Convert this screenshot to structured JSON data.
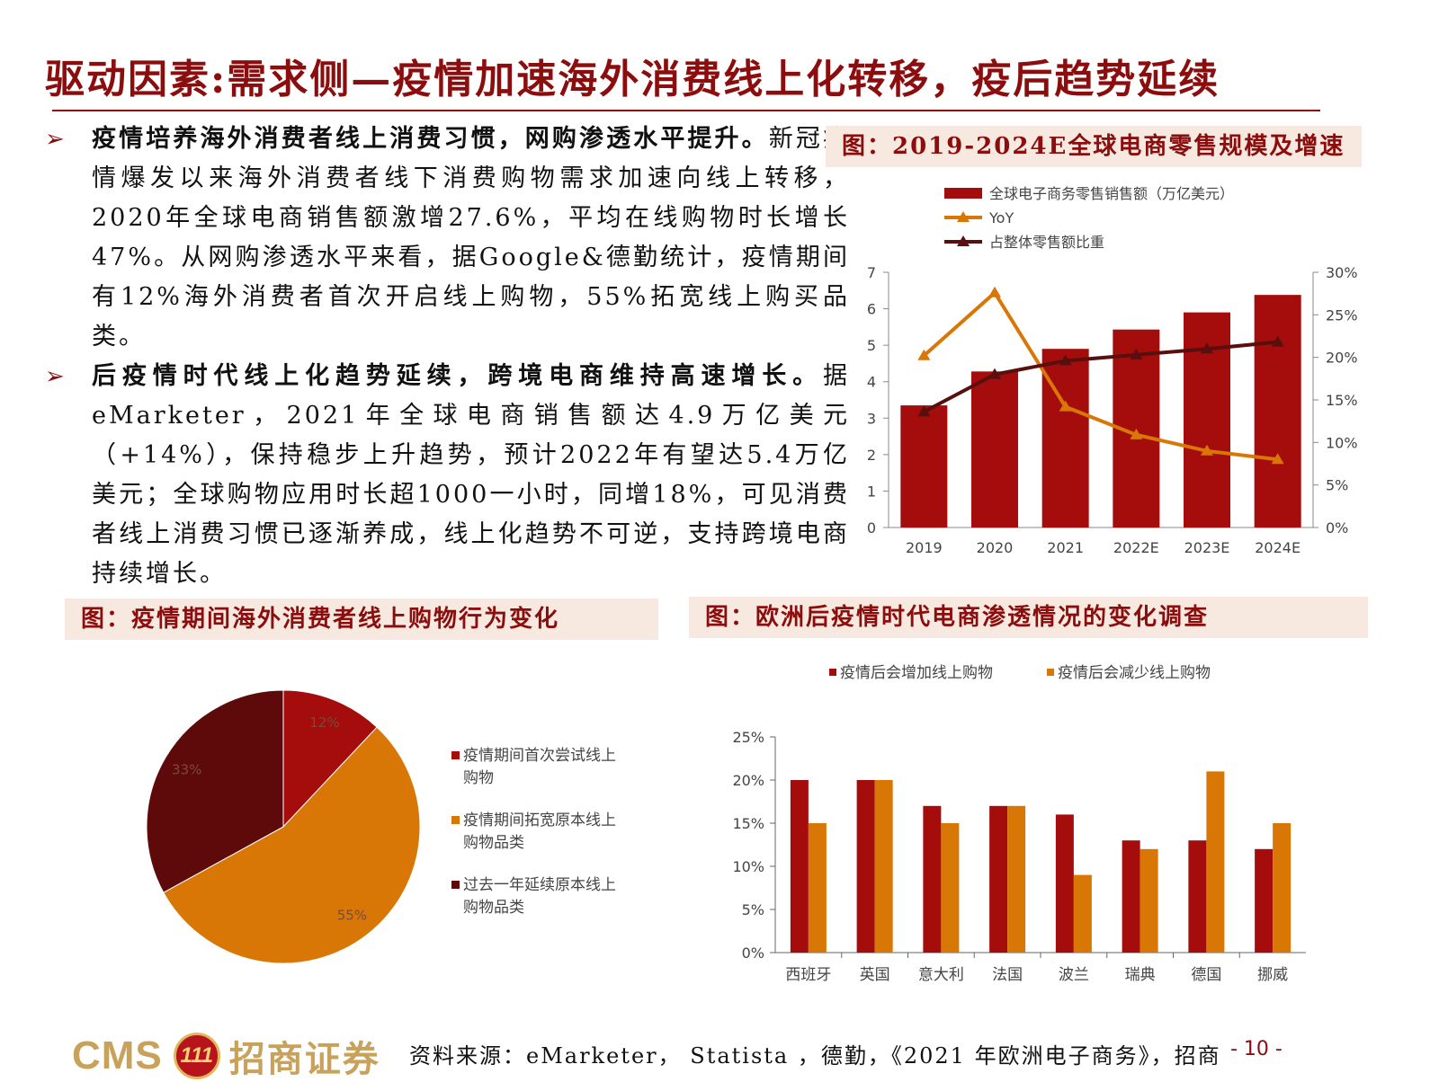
{
  "header": {
    "title": "驱动因素:需求侧—疫情加速海外消费线上化转移，疫后趋势延续"
  },
  "bullets": [
    {
      "lead": "疫情培养海外消费者线上消费习惯，网购渗透水平提升。",
      "body": "新冠疫情爆发以来海外消费者线下消费购物需求加速向线上转移，2020年全球电商销售额激增27.6%，平均在线购物时长增长47%。从网购渗透水平来看，据Google&德勤统计，疫情期间有12%海外消费者首次开启线上购物，55%拓宽线上购买品类。"
    },
    {
      "lead": "后疫情时代线上化趋势延续，跨境电商维持高速增长。",
      "body": "据eMarketer，2021年全球电商销售额达4.9万亿美元（+14%），保持稳步上升趋势，预计2022年有望达5.4万亿美元；全球购物应用时长超1000一小时，同增18%，可见消费者线上消费习惯已逐渐养成，线上化趋势不可逆，支持跨境电商持续增长。"
    }
  ],
  "captions": {
    "chart1": "图：2019-2024E全球电商零售规模及增速",
    "chart2": "图：疫情期间海外消费者线上购物行为变化",
    "chart3": "图：欧洲后疫情时代电商渗透情况的变化调查"
  },
  "chart_data": [
    {
      "type": "bar",
      "categories": [
        "2019",
        "2020",
        "2021",
        "2022E",
        "2023E",
        "2024E"
      ],
      "series": [
        {
          "name": "全球电子商务零售销售额（万亿美元）",
          "kind": "bar",
          "axis": "left",
          "values": [
            3.35,
            4.28,
            4.9,
            5.43,
            5.9,
            6.38
          ]
        },
        {
          "name": "YoY",
          "kind": "line",
          "axis": "right",
          "values": [
            20.2,
            27.6,
            14.2,
            10.9,
            9.0,
            8.0
          ]
        },
        {
          "name": "占整体零售额比重",
          "kind": "line",
          "axis": "right",
          "values": [
            13.6,
            18.0,
            19.6,
            20.3,
            21.0,
            21.8
          ]
        }
      ],
      "ylim_left": [
        0,
        7
      ],
      "yticks_left": [
        "0",
        "1",
        "2",
        "3",
        "4",
        "5",
        "6",
        "7"
      ],
      "ylim_right": [
        0,
        30
      ],
      "yticks_right": [
        "0%",
        "5%",
        "10%",
        "15%",
        "20%",
        "25%",
        "30%"
      ],
      "legend": "top-left",
      "colors": {
        "bar": "#a50c0c",
        "yoy": "#d97706",
        "share": "#5a0f0f"
      }
    },
    {
      "type": "pie",
      "slices": [
        {
          "label": "疫情期间首次尝试线上购物",
          "legend": [
            "疫情期间首次尝试线上",
            "购物"
          ],
          "value": 12,
          "text": "12%"
        },
        {
          "label": "疫情期间拓宽原本线上购物品类",
          "legend": [
            "疫情期间拓宽原本线上",
            "购物品类"
          ],
          "value": 55,
          "text": "55%"
        },
        {
          "label": "过去一年延续原本线上购物品类",
          "legend": [
            "过去一年延续原本线上",
            "购物品类"
          ],
          "value": 33,
          "text": "33%"
        }
      ],
      "legend": "right",
      "colors": [
        "#a50c0c",
        "#d97706",
        "#5e0a0a"
      ]
    },
    {
      "type": "bar",
      "categories": [
        "西班牙",
        "英国",
        "意大利",
        "法国",
        "波兰",
        "瑞典",
        "德国",
        "挪威"
      ],
      "series": [
        {
          "name": "疫情后会增加线上购物",
          "values": [
            20,
            20,
            17,
            17,
            16,
            13,
            13,
            12
          ]
        },
        {
          "name": "疫情后会减少线上购物",
          "values": [
            15,
            20,
            15,
            17,
            9,
            12,
            21,
            15
          ]
        }
      ],
      "ylim": [
        0,
        25
      ],
      "yticks": [
        "0%",
        "5%",
        "10%",
        "15%",
        "20%",
        "25%"
      ],
      "legend": "top",
      "colors": [
        "#a50c0c",
        "#d97706"
      ]
    }
  ],
  "footer": {
    "logo_text": "CMS",
    "logo_badge": "111",
    "logo_cn": "招商证券",
    "source": "资料来源：eMarketer， Statista ，德勤，《2021 年欧洲电子商务》，招商",
    "page": "- 10 -"
  }
}
